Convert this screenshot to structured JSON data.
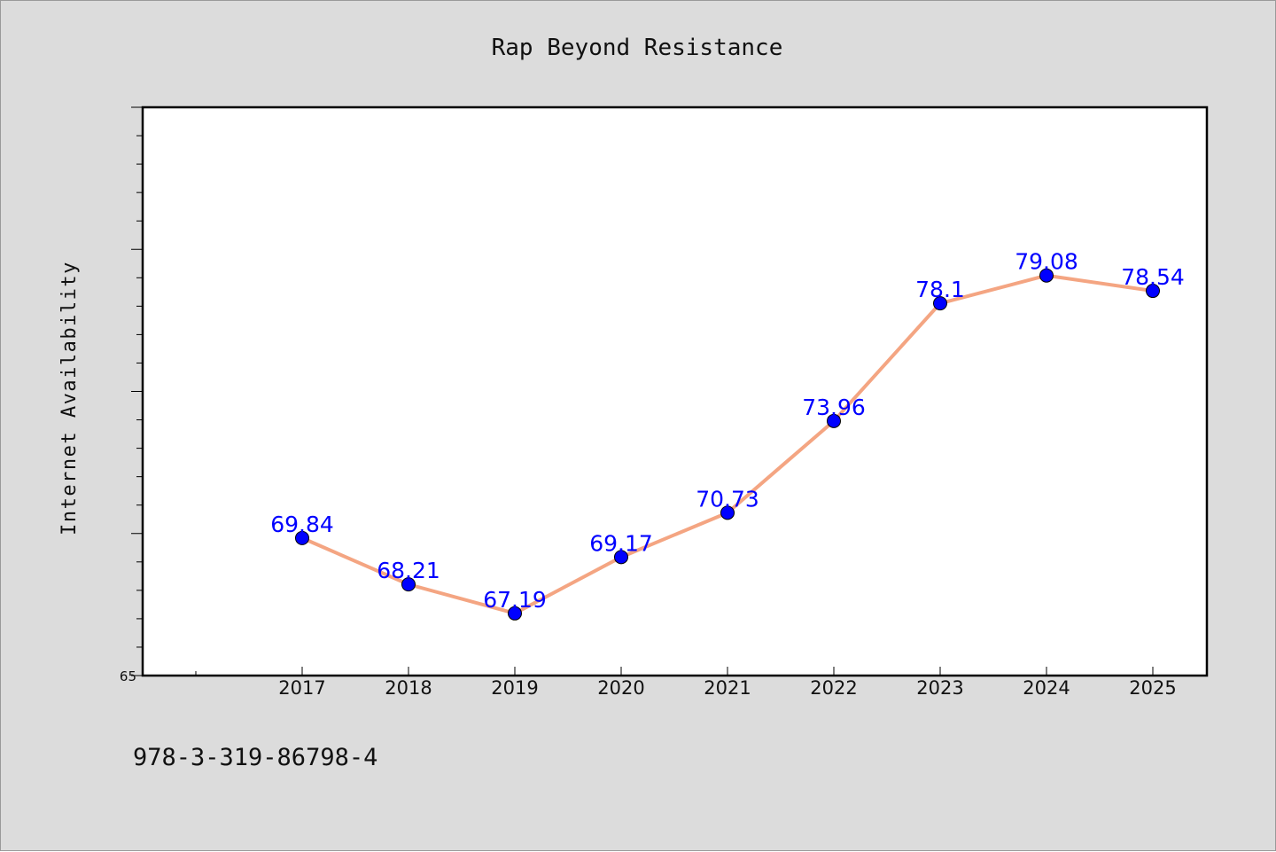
{
  "chart_data": {
    "type": "line",
    "title": "Rap Beyond Resistance",
    "ylabel": "Internet Availability",
    "xlabel": "",
    "categories": [
      "2017",
      "2018",
      "2019",
      "2020",
      "2021",
      "2022",
      "2023",
      "2024",
      "2025"
    ],
    "series": [
      {
        "values": [
          69.84,
          68.21,
          67.19,
          69.17,
          70.73,
          73.96,
          78.1,
          79.08,
          78.54
        ]
      }
    ],
    "data_labels": [
      "69.84",
      "68.21",
      "67.19",
      "69.17",
      "70.73",
      "73.96",
      "78.1",
      "79.08",
      "78.54"
    ],
    "ylim": [
      65,
      85
    ],
    "yticks_labeled": [
      "65"
    ],
    "grid": false,
    "legend": "none",
    "colors": {
      "background": "#dcdcdc",
      "plot_background": "#ffffff",
      "line": "#f4a582",
      "marker": "#0000ff",
      "data_label": "#0000ff",
      "frame": "#000000"
    }
  },
  "footer": {
    "isbn": "978-3-319-86798-4"
  }
}
